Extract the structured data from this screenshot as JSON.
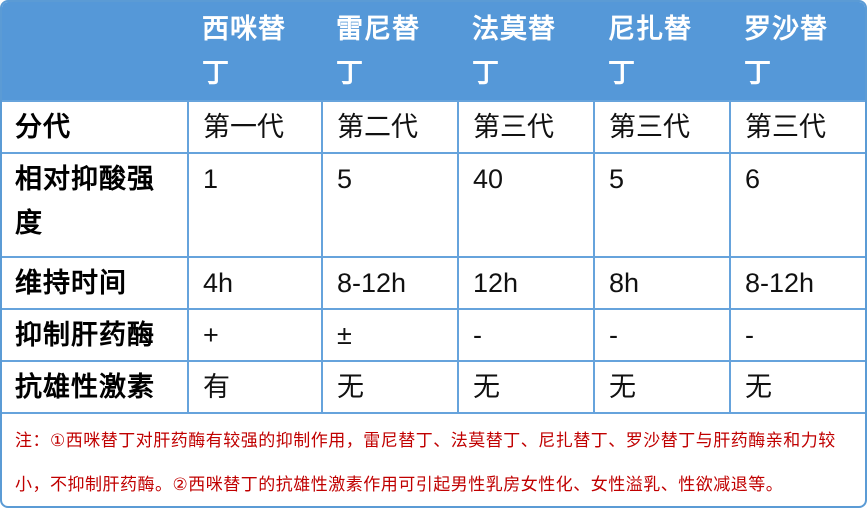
{
  "table": {
    "header": {
      "corner": "",
      "columns": [
        "西咪替丁",
        "雷尼替丁",
        "法莫替丁",
        "尼扎替丁",
        "罗沙替丁"
      ]
    },
    "rows": [
      {
        "label": "分代",
        "values": [
          "第一代",
          "第二代",
          "第三代",
          "第三代",
          "第三代"
        ]
      },
      {
        "label": "相对抑酸强度",
        "values": [
          "1",
          "5",
          "40",
          "5",
          "6"
        ]
      },
      {
        "label": "维持时间",
        "values": [
          "4h",
          "8-12h",
          "12h",
          "8h",
          "8-12h"
        ]
      },
      {
        "label": "抑制肝药酶",
        "values": [
          "+",
          "±",
          "-",
          "-",
          "-"
        ]
      },
      {
        "label": "抗雄性激素",
        "values": [
          "有",
          "无",
          "无",
          "无",
          "无"
        ]
      }
    ],
    "note": "注：①西咪替丁对肝药酶有较强的抑制作用，雷尼替丁、法莫替丁、尼扎替丁、罗沙替丁与肝药酶亲和力较小，不抑制肝药酶。②西咪替丁的抗雄性激素作用可引起男性乳房女性化、女性溢乳、性欲减退等。"
  },
  "colors": {
    "header_bg": "#5598D8",
    "grid_border": "#66A3DC",
    "header_text": "#FFFFFF",
    "body_text": "#111111",
    "note_text": "#C00000"
  }
}
